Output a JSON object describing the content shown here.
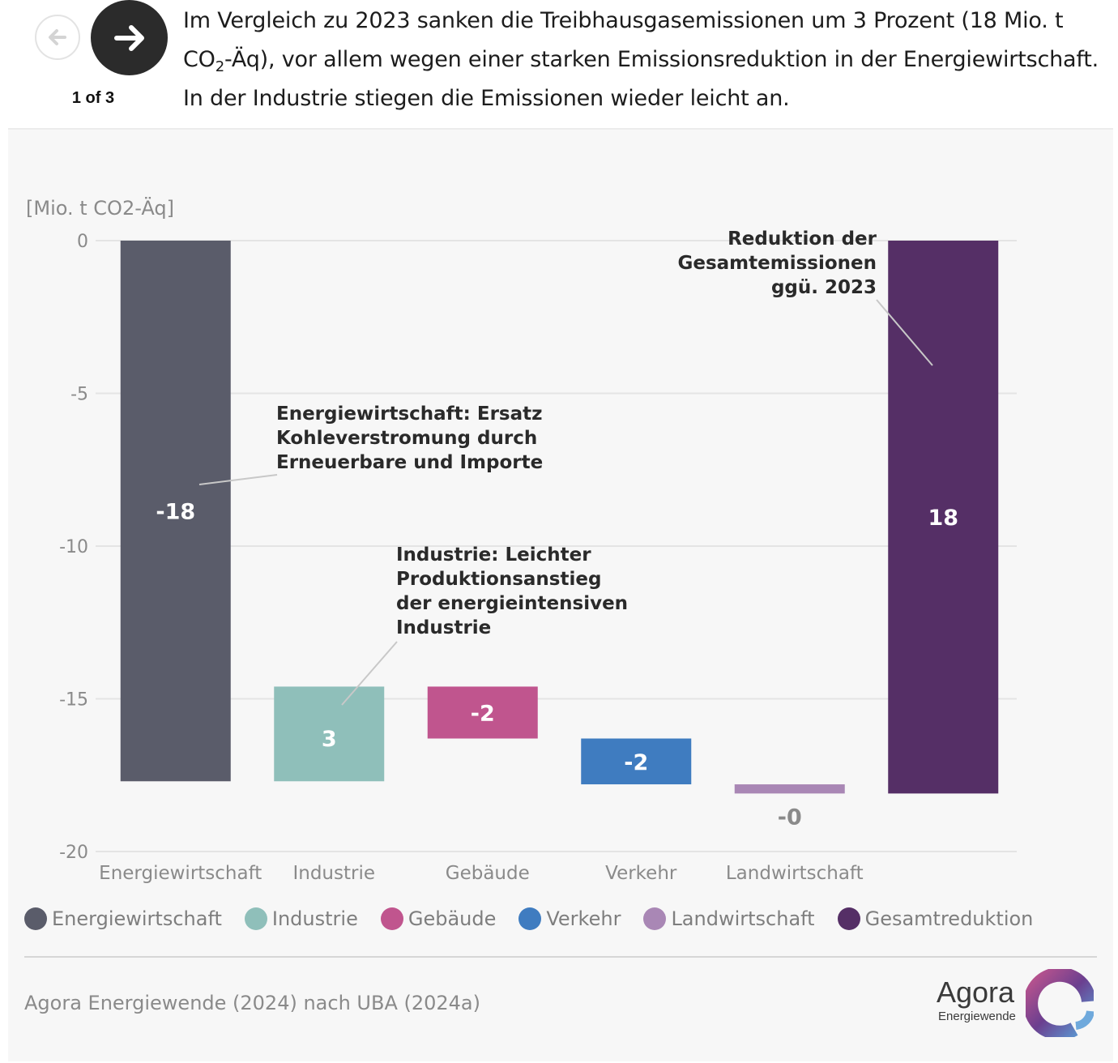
{
  "nav": {
    "pager": "1 of 3",
    "prev_icon": "arrow-left-icon",
    "next_icon": "arrow-right-icon"
  },
  "headline": {
    "part1": "Im Vergleich zu 2023 sanken die Treibhausgasemissionen um 3 Prozent (18 Mio. t CO",
    "sub": "2",
    "part2": "-Äq), vor allem wegen einer starken Emissionsreduktion in der Energiewirtschaft. In der Industrie stiegen die Emissionen wieder leicht an."
  },
  "chart_data": {
    "type": "bar",
    "subtype": "waterfall",
    "ylabel": "[Mio. t CO2-Äq]",
    "ylim": [
      -20,
      0
    ],
    "yticks": [
      0,
      -5,
      -10,
      -15,
      -20
    ],
    "grid": true,
    "categories": [
      "Energiewirtschaft",
      "Industrie",
      "Gebäude",
      "Verkehr",
      "Landwirtschaft",
      ""
    ],
    "bars": [
      {
        "category": "Energiewirtschaft",
        "label": "-18",
        "start": 0,
        "end": -17.7,
        "color": "#5a5c6a",
        "label_color": "#ffffff"
      },
      {
        "category": "Industrie",
        "label": "3",
        "start": -17.7,
        "end": -14.6,
        "color": "#8fbfba",
        "label_color": "#ffffff"
      },
      {
        "category": "Gebäude",
        "label": "-2",
        "start": -14.6,
        "end": -16.3,
        "color": "#c0558e",
        "label_color": "#ffffff"
      },
      {
        "category": "Verkehr",
        "label": "-2",
        "start": -16.3,
        "end": -17.8,
        "color": "#3f7cc0",
        "label_color": "#ffffff"
      },
      {
        "category": "Landwirtschaft",
        "label": "-0",
        "start": -17.8,
        "end": -18.1,
        "color": "#a987b5",
        "label_color": "#8a8a8a"
      },
      {
        "category": "",
        "label": "18",
        "start": 0,
        "end": -18.1,
        "color": "#552f66",
        "label_color": "#ffffff"
      }
    ],
    "annotations": [
      {
        "lines": [
          "Energiewirtschaft: Ersatz",
          "Kohleverstromung durch",
          "Erneuerbare und Importe"
        ],
        "target_bar": 0
      },
      {
        "lines": [
          "Industrie: Leichter",
          "Produktionsanstieg",
          "der energieintensiven",
          "Industrie"
        ],
        "target_bar": 1
      },
      {
        "lines": [
          "Reduktion der",
          "Gesamtemissionen",
          "ggü. 2023"
        ],
        "target_bar": 5
      }
    ]
  },
  "legend": [
    {
      "label": "Energiewirtschaft",
      "color": "#5a5c6a"
    },
    {
      "label": "Industrie",
      "color": "#8fbfba"
    },
    {
      "label": "Gebäude",
      "color": "#c0558e"
    },
    {
      "label": "Verkehr",
      "color": "#3f7cc0"
    },
    {
      "label": "Landwirtschaft",
      "color": "#a987b5"
    },
    {
      "label": "Gesamtreduktion",
      "color": "#552f66"
    }
  ],
  "source": "Agora Energiewende (2024) nach UBA (2024a)",
  "logo": {
    "word": "Agora",
    "sub": "Energiewende"
  }
}
